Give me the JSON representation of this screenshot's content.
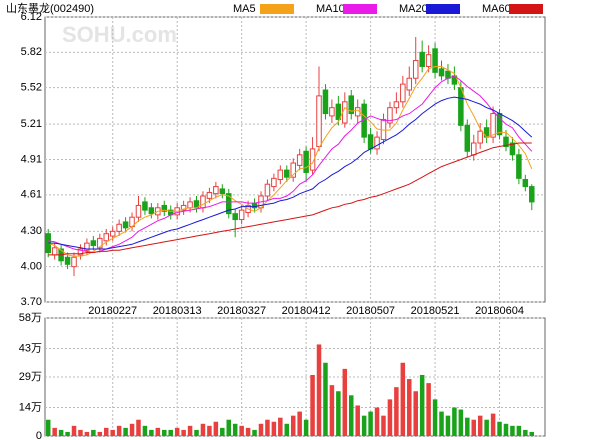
{
  "chart_data": [
    {
      "type": "candlestick",
      "title": "山东墨龙(002490)",
      "watermark": "SOHU.com",
      "categories": [
        null,
        null,
        null,
        null,
        null,
        null,
        null,
        null,
        null,
        null,
        "20180227",
        null,
        null,
        null,
        null,
        null,
        null,
        null,
        null,
        null,
        "20180313",
        null,
        null,
        null,
        null,
        null,
        null,
        null,
        null,
        null,
        "20180327",
        null,
        null,
        null,
        null,
        null,
        null,
        null,
        null,
        null,
        "20180412",
        null,
        null,
        null,
        null,
        null,
        null,
        null,
        null,
        null,
        "20180507",
        null,
        null,
        null,
        null,
        null,
        null,
        null,
        null,
        null,
        "20180521",
        null,
        null,
        null,
        null,
        null,
        null,
        null,
        null,
        null,
        "20180604",
        null,
        null,
        null,
        null,
        null
      ],
      "open": [
        4.28,
        4.1,
        4.15,
        4.08,
        4.0,
        4.1,
        4.14,
        4.22,
        4.16,
        4.22,
        4.26,
        4.3,
        4.38,
        4.34,
        4.42,
        4.55,
        4.5,
        4.44,
        4.52,
        4.48,
        4.44,
        4.48,
        4.5,
        4.56,
        4.5,
        4.58,
        4.62,
        4.66,
        4.62,
        4.45,
        4.4,
        4.46,
        4.54,
        4.5,
        4.6,
        4.68,
        4.74,
        4.82,
        4.76,
        4.86,
        4.98,
        4.82,
        5.02,
        5.5,
        5.28,
        5.38,
        5.22,
        5.45,
        5.28,
        5.38,
        5.12,
        5.0,
        5.08,
        5.22,
        5.35,
        5.4,
        5.5,
        5.6,
        5.82,
        5.7,
        5.85,
        5.68,
        5.66,
        5.62,
        5.52,
        5.2,
        4.95,
        5.05,
        5.18,
        5.1,
        5.3,
        5.1,
        5.05,
        4.95,
        4.74,
        4.68
      ],
      "high": [
        4.32,
        4.2,
        4.19,
        4.12,
        4.12,
        4.19,
        4.24,
        4.26,
        4.28,
        4.32,
        4.34,
        4.4,
        4.42,
        4.46,
        4.6,
        4.59,
        4.54,
        4.54,
        4.56,
        4.52,
        4.54,
        4.56,
        4.59,
        4.6,
        4.64,
        4.67,
        4.72,
        4.7,
        4.66,
        4.49,
        4.52,
        4.56,
        4.58,
        4.64,
        4.74,
        4.79,
        4.86,
        4.86,
        4.92,
        5.0,
        5.02,
        5.1,
        5.7,
        5.55,
        5.42,
        5.45,
        5.48,
        5.5,
        5.42,
        5.42,
        5.18,
        5.15,
        5.3,
        5.4,
        5.48,
        5.62,
        5.7,
        5.95,
        5.92,
        5.88,
        5.9,
        5.75,
        5.72,
        5.7,
        5.58,
        5.25,
        5.12,
        5.22,
        5.25,
        5.36,
        5.34,
        5.16,
        5.1,
        5.0,
        4.78,
        4.7
      ],
      "low": [
        4.08,
        4.06,
        4.01,
        3.98,
        3.92,
        4.06,
        4.1,
        4.14,
        4.12,
        4.18,
        4.22,
        4.26,
        4.29,
        4.3,
        4.38,
        4.44,
        4.41,
        4.4,
        4.43,
        4.4,
        4.4,
        4.44,
        4.46,
        4.46,
        4.46,
        4.54,
        4.58,
        4.58,
        4.41,
        4.25,
        4.36,
        4.42,
        4.46,
        4.46,
        4.56,
        4.64,
        4.7,
        4.72,
        4.72,
        4.82,
        4.72,
        4.78,
        4.98,
        5.25,
        5.22,
        5.2,
        5.18,
        5.25,
        5.22,
        5.05,
        4.96,
        4.95,
        5.04,
        5.18,
        5.3,
        5.35,
        5.45,
        5.55,
        5.65,
        5.65,
        5.6,
        5.58,
        5.55,
        5.5,
        5.15,
        4.93,
        4.9,
        5.0,
        5.05,
        5.05,
        5.08,
        4.98,
        4.9,
        4.7,
        4.64,
        4.48
      ],
      "close": [
        4.12,
        4.16,
        4.05,
        4.02,
        4.08,
        4.15,
        4.2,
        4.18,
        4.24,
        4.28,
        4.3,
        4.36,
        4.33,
        4.42,
        4.52,
        4.48,
        4.45,
        4.5,
        4.47,
        4.44,
        4.5,
        4.52,
        4.55,
        4.5,
        4.6,
        4.63,
        4.68,
        4.62,
        4.45,
        4.4,
        4.48,
        4.52,
        4.5,
        4.6,
        4.7,
        4.75,
        4.82,
        4.76,
        4.88,
        4.95,
        4.8,
        5.0,
        5.45,
        5.3,
        5.35,
        5.25,
        5.4,
        5.3,
        5.35,
        5.1,
        5.0,
        5.1,
        5.25,
        5.35,
        5.4,
        5.55,
        5.6,
        5.75,
        5.7,
        5.8,
        5.65,
        5.62,
        5.6,
        5.55,
        5.2,
        4.98,
        5.05,
        5.15,
        5.1,
        5.3,
        5.12,
        5.02,
        4.95,
        4.75,
        4.68,
        4.55
      ],
      "up_color": "#e8403f",
      "down_color": "#1aa31a",
      "series": [
        {
          "name": "MA5",
          "color": "#f5a21b",
          "values": [
            4.2,
            4.18,
            4.14,
            4.1,
            4.09,
            4.09,
            4.1,
            4.13,
            4.17,
            4.21,
            4.24,
            4.27,
            4.3,
            4.34,
            4.39,
            4.42,
            4.44,
            4.47,
            4.48,
            4.47,
            4.47,
            4.49,
            4.5,
            4.5,
            4.53,
            4.56,
            4.59,
            4.61,
            4.6,
            4.56,
            4.53,
            4.49,
            4.47,
            4.5,
            4.56,
            4.61,
            4.67,
            4.73,
            4.78,
            4.83,
            4.84,
            4.88,
            5.01,
            5.1,
            5.18,
            5.23,
            5.35,
            5.32,
            5.33,
            5.28,
            5.23,
            5.17,
            5.16,
            5.16,
            5.22,
            5.33,
            5.43,
            5.53,
            5.6,
            5.68,
            5.7,
            5.7,
            5.67,
            5.64,
            5.52,
            5.38,
            5.28,
            5.17,
            5.1,
            5.12,
            5.14,
            5.14,
            5.09,
            5.03,
            4.96,
            4.83
          ]
        },
        {
          "name": "MA10",
          "color": "#e81be8",
          "values": [
            4.22,
            4.21,
            4.19,
            4.17,
            4.15,
            4.14,
            4.13,
            4.12,
            4.13,
            4.15,
            4.17,
            4.19,
            4.22,
            4.25,
            4.3,
            4.33,
            4.36,
            4.39,
            4.41,
            4.44,
            4.46,
            4.47,
            4.48,
            4.49,
            4.5,
            4.51,
            4.53,
            4.55,
            4.55,
            4.55,
            4.55,
            4.54,
            4.54,
            4.55,
            4.56,
            4.58,
            4.58,
            4.6,
            4.64,
            4.7,
            4.73,
            4.78,
            4.86,
            4.93,
            5.0,
            5.04,
            5.11,
            5.16,
            5.22,
            5.25,
            5.28,
            5.26,
            5.24,
            5.24,
            5.25,
            5.28,
            5.3,
            5.34,
            5.38,
            5.45,
            5.52,
            5.57,
            5.6,
            5.62,
            5.58,
            5.53,
            5.49,
            5.45,
            5.39,
            5.32,
            5.26,
            5.21,
            5.18,
            5.1,
            5.04,
            4.98
          ]
        },
        {
          "name": "MA20",
          "color": "#1a1ad6",
          "values": [
            4.2,
            4.2,
            4.19,
            4.18,
            4.17,
            4.16,
            4.15,
            4.15,
            4.15,
            4.15,
            4.16,
            4.17,
            4.18,
            4.19,
            4.21,
            4.23,
            4.25,
            4.27,
            4.29,
            4.31,
            4.32,
            4.34,
            4.36,
            4.38,
            4.4,
            4.42,
            4.44,
            4.46,
            4.48,
            4.49,
            4.51,
            4.51,
            4.51,
            4.52,
            4.53,
            4.54,
            4.56,
            4.57,
            4.59,
            4.62,
            4.64,
            4.66,
            4.71,
            4.74,
            4.78,
            4.81,
            4.85,
            4.88,
            4.92,
            4.97,
            5.0,
            5.03,
            5.06,
            5.09,
            5.12,
            5.16,
            5.21,
            5.25,
            5.3,
            5.34,
            5.38,
            5.41,
            5.43,
            5.44,
            5.43,
            5.42,
            5.4,
            5.38,
            5.35,
            5.33,
            5.3,
            5.27,
            5.24,
            5.2,
            5.15,
            5.1
          ]
        },
        {
          "name": "MA60",
          "color": "#d41515",
          "values": [
            4.1,
            4.1,
            4.1,
            4.11,
            4.11,
            4.11,
            4.12,
            4.12,
            4.13,
            4.13,
            4.14,
            4.14,
            4.15,
            4.16,
            4.17,
            4.18,
            4.19,
            4.2,
            4.21,
            4.22,
            4.23,
            4.24,
            4.25,
            4.26,
            4.27,
            4.28,
            4.29,
            4.3,
            4.31,
            4.32,
            4.33,
            4.34,
            4.35,
            4.36,
            4.37,
            4.38,
            4.39,
            4.4,
            4.41,
            4.42,
            4.43,
            4.44,
            4.46,
            4.48,
            4.5,
            4.51,
            4.53,
            4.54,
            4.56,
            4.57,
            4.59,
            4.6,
            4.62,
            4.64,
            4.66,
            4.68,
            4.7,
            4.73,
            4.76,
            4.79,
            4.82,
            4.85,
            4.87,
            4.89,
            4.91,
            4.93,
            4.95,
            4.97,
            4.99,
            5.01,
            5.02,
            5.03,
            5.04,
            5.05,
            5.05,
            5.05
          ]
        }
      ],
      "ylim": [
        3.7,
        6.12
      ],
      "yticks": [
        {
          "value": 3.7,
          "label": "3.70"
        },
        {
          "value": 4.0,
          "label": "4.00"
        },
        {
          "value": 4.3,
          "label": "4.30"
        },
        4.61,
        4.91,
        5.21,
        5.52,
        5.82,
        6.12
      ],
      "grid": true
    },
    {
      "type": "bar",
      "values": [
        8,
        4,
        3,
        2,
        5,
        3,
        2,
        3,
        2,
        4,
        3,
        5,
        4,
        6,
        8,
        5,
        3,
        4,
        3,
        3,
        4,
        3,
        5,
        3,
        6,
        5,
        7,
        4,
        8,
        6,
        5,
        4,
        3,
        6,
        8,
        7,
        9,
        6,
        10,
        12,
        8,
        30,
        45,
        36,
        25,
        22,
        33,
        20,
        15,
        10,
        12,
        14,
        10,
        18,
        24,
        36,
        28,
        22,
        30,
        26,
        18,
        12,
        10,
        14,
        13,
        9,
        8,
        10,
        8,
        11,
        7,
        6,
        5,
        5,
        3,
        2
      ],
      "ylim": [
        0,
        58
      ],
      "yticks": [
        0,
        {
          "value": 14,
          "label": "14万"
        },
        {
          "value": 29,
          "label": "29万"
        },
        {
          "value": 43,
          "label": "43万"
        },
        {
          "value": 58,
          "label": "58万"
        }
      ],
      "grid": true
    }
  ]
}
